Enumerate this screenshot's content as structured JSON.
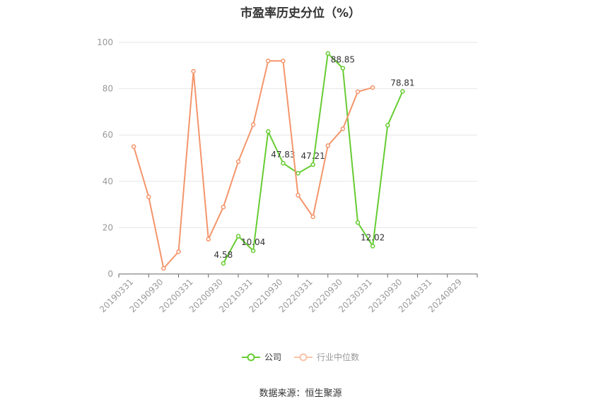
{
  "chart_data": {
    "type": "line",
    "title": "市盈率历史分位（%）",
    "categories": [
      "20190331",
      "20190930",
      "20200331",
      "20200930",
      "20210331",
      "20210930",
      "20220331",
      "20220930",
      "20230331",
      "20230930",
      "20240331",
      "20240829"
    ],
    "ylim": [
      0,
      100
    ],
    "yticks": [
      0,
      20,
      40,
      60,
      80,
      100
    ],
    "series": [
      {
        "name": "公司",
        "color": "#66cc33",
        "points": [
          {
            "x": 4.0,
            "y": 4.58
          },
          {
            "x": 4.5,
            "y": 16.3
          },
          {
            "x": 5.0,
            "y": 10.04
          },
          {
            "x": 5.5,
            "y": 61.5
          },
          {
            "x": 6.0,
            "y": 47.83
          },
          {
            "x": 6.5,
            "y": 43.5
          },
          {
            "x": 7.0,
            "y": 47.21
          },
          {
            "x": 7.5,
            "y": 95.2
          },
          {
            "x": 8.0,
            "y": 88.85
          },
          {
            "x": 8.5,
            "y": 22.2
          },
          {
            "x": 9.0,
            "y": 12.02
          },
          {
            "x": 9.5,
            "y": 64.2
          },
          {
            "x": 10.0,
            "y": 78.81
          }
        ],
        "labels": [
          {
            "index": 0,
            "text": "4.58"
          },
          {
            "index": 2,
            "text": "10.04"
          },
          {
            "index": 4,
            "text": "47.83"
          },
          {
            "index": 6,
            "text": "47.21"
          },
          {
            "index": 8,
            "text": "88.85"
          },
          {
            "index": 10,
            "text": "12.02"
          },
          {
            "index": 12,
            "text": "78.81"
          }
        ]
      },
      {
        "name": "行业中位数",
        "color": "#f4956b",
        "points": [
          {
            "x": 1.0,
            "y": 55.0
          },
          {
            "x": 1.5,
            "y": 33.3
          },
          {
            "x": 2.0,
            "y": 2.4
          },
          {
            "x": 2.5,
            "y": 9.6
          },
          {
            "x": 3.0,
            "y": 87.5
          },
          {
            "x": 3.5,
            "y": 15.0
          },
          {
            "x": 4.0,
            "y": 28.9
          },
          {
            "x": 4.5,
            "y": 48.5
          },
          {
            "x": 5.0,
            "y": 64.5
          },
          {
            "x": 5.5,
            "y": 92.0
          },
          {
            "x": 6.0,
            "y": 92.0
          },
          {
            "x": 6.5,
            "y": 34.0
          },
          {
            "x": 7.0,
            "y": 24.7
          },
          {
            "x": 7.5,
            "y": 55.4
          },
          {
            "x": 8.0,
            "y": 62.7
          },
          {
            "x": 8.5,
            "y": 78.7
          },
          {
            "x": 9.0,
            "y": 80.5
          }
        ]
      }
    ]
  },
  "legend": {
    "company": "公司",
    "industry": "行业中位数"
  },
  "source": "数据来源：恒生聚源"
}
